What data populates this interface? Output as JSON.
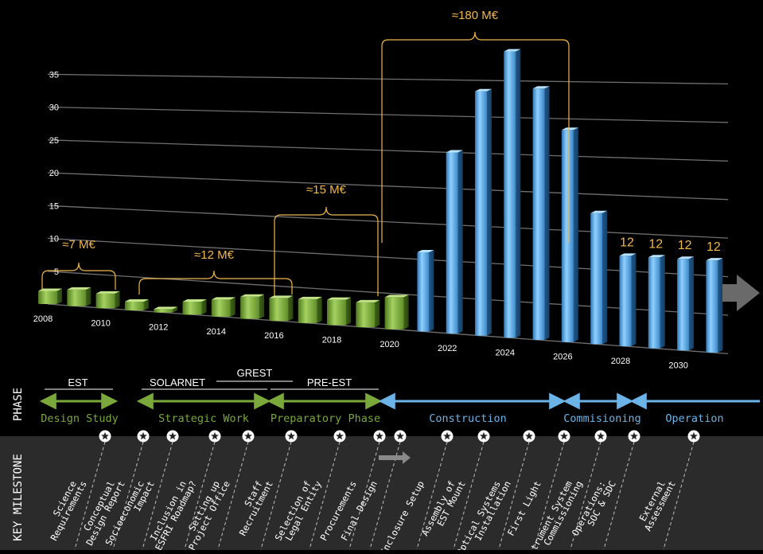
{
  "chart_data": {
    "type": "bar",
    "y_ticks": [
      5,
      10,
      15,
      20,
      25,
      30,
      35
    ],
    "ylim": [
      0,
      37
    ],
    "grid": true,
    "x_tick_labels": [
      "2008",
      "2010",
      "2012",
      "2014",
      "2016",
      "2018",
      "2020",
      "2022",
      "2024",
      "2026",
      "2028",
      "2030"
    ],
    "bars": [
      {
        "year": 2008,
        "value": 2.0,
        "phase": "design"
      },
      {
        "year": 2009,
        "value": 2.5,
        "phase": "design"
      },
      {
        "year": 2010,
        "value": 2.2,
        "phase": "design"
      },
      {
        "year": 2011,
        "value": 1.3,
        "phase": "design"
      },
      {
        "year": 2012,
        "value": 0.5,
        "phase": "strategic"
      },
      {
        "year": 2013,
        "value": 1.9,
        "phase": "strategic"
      },
      {
        "year": 2014,
        "value": 2.5,
        "phase": "strategic"
      },
      {
        "year": 2015,
        "value": 3.2,
        "phase": "strategic"
      },
      {
        "year": 2016,
        "value": 3.3,
        "phase": "strategic"
      },
      {
        "year": 2017,
        "value": 3.4,
        "phase": "preparatory"
      },
      {
        "year": 2018,
        "value": 3.6,
        "phase": "preparatory"
      },
      {
        "year": 2019,
        "value": 3.5,
        "phase": "preparatory"
      },
      {
        "year": 2020,
        "value": 4.5,
        "phase": "preparatory"
      },
      {
        "year": 2021,
        "value": 11.0,
        "phase": "construction"
      },
      {
        "year": 2022,
        "value": 25.0,
        "phase": "construction"
      },
      {
        "year": 2023,
        "value": 33.5,
        "phase": "construction"
      },
      {
        "year": 2024,
        "value": 39.0,
        "phase": "construction"
      },
      {
        "year": 2025,
        "value": 34.0,
        "phase": "construction"
      },
      {
        "year": 2026,
        "value": 28.5,
        "phase": "construction"
      },
      {
        "year": 2027,
        "value": 17.5,
        "phase": "construction"
      },
      {
        "year": 2028,
        "value": 12,
        "phase": "commissioning"
      },
      {
        "year": 2029,
        "value": 12,
        "phase": "commissioning"
      },
      {
        "year": 2030,
        "value": 12,
        "phase": "operation"
      },
      {
        "year": 2031,
        "value": 12,
        "phase": "operation"
      }
    ],
    "value_labels": [
      "12",
      "12",
      "12",
      "12"
    ],
    "cost_groups": [
      {
        "label": "≈7 M€"
      },
      {
        "label": "≈12 M€"
      },
      {
        "label": "≈15 M€"
      },
      {
        "label": "≈180 M€"
      }
    ],
    "colors": {
      "green": "#7aa83a",
      "blue": "#6cb4e8",
      "gold": "#f0b84a",
      "grid": "#6f6f6f"
    }
  },
  "phase_section": {
    "title": "PHASE",
    "projects": [
      "EST",
      "SOLARNET",
      "GREST",
      "PRE-EST"
    ],
    "phases": [
      "Design Study",
      "Strategic Work",
      "Preparatory Phase",
      "Construction",
      "Commisioning",
      "Operation"
    ]
  },
  "milestone_section": {
    "title": "KEY MILESTONE",
    "milestones": [
      [
        "Science",
        "Requirements"
      ],
      [
        "Conceptual",
        "Design Report"
      ],
      [
        "Socioeconomic",
        "Impact"
      ],
      [
        "Inclusion in",
        "ESFRI Roadmap?"
      ],
      [
        "Setting up",
        "Project Office"
      ],
      [
        "Staff",
        "Recruitment"
      ],
      [
        "Selection of",
        "Legal Entity"
      ],
      [
        "Procurements"
      ],
      [
        "Final Design"
      ],
      [
        "Enclosure Setup"
      ],
      [
        "Assembly of",
        "EST Mount"
      ],
      [
        "Optical Systems",
        "Installation"
      ],
      [
        "First Light"
      ],
      [
        "Instrument System",
        "Commissioning"
      ],
      [
        "Operations:",
        "SOC & SDC"
      ],
      [
        "External",
        "Assessment"
      ]
    ]
  }
}
